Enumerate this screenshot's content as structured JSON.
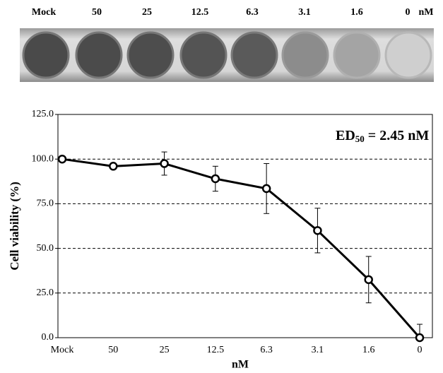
{
  "chart_data": {
    "type": "line",
    "categories": [
      "Mock",
      "50",
      "25",
      "12.5",
      "6.3",
      "3.1",
      "1.6",
      "0"
    ],
    "series": [
      {
        "color": "#000000",
        "values": [
          100,
          96,
          97.5,
          89,
          83.5,
          60,
          32.5,
          0
        ],
        "errors": [
          0,
          0,
          6.5,
          7,
          14,
          12.5,
          13,
          7.5
        ]
      }
    ],
    "x_label": "nM",
    "y_label": "Cell viability (%)",
    "annotation": {
      "text": "ED",
      "subscript": "50",
      "rest": " = 2.45 nM"
    },
    "ylim": [
      0,
      125
    ],
    "yticks": [
      {
        "value": 0,
        "label": "0.0"
      },
      {
        "value": 25,
        "label": "25.0"
      },
      {
        "value": 50,
        "label": "50.0"
      },
      {
        "value": 75,
        "label": "75.0"
      },
      {
        "value": 100,
        "label": "100.0"
      },
      {
        "value": 125,
        "label": "125.0"
      }
    ],
    "grid": true
  }
}
